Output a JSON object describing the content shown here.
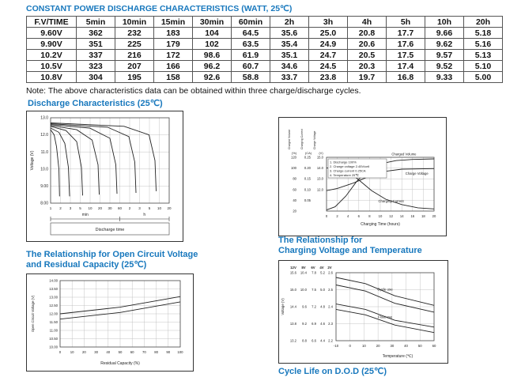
{
  "accent_color": "#1878bd",
  "table": {
    "title": "CONSTANT POWER DISCHARGE CHARACTERISTICS (WATT, 25℃)",
    "headers": [
      "F.V/TIME",
      "5min",
      "10min",
      "15min",
      "30min",
      "60min",
      "2h",
      "3h",
      "4h",
      "5h",
      "10h",
      "20h"
    ],
    "rows": [
      [
        "9.60V",
        "362",
        "232",
        "183",
        "104",
        "64.5",
        "35.6",
        "25.0",
        "20.8",
        "17.7",
        "9.66",
        "5.18"
      ],
      [
        "9.90V",
        "351",
        "225",
        "179",
        "102",
        "63.5",
        "35.4",
        "24.9",
        "20.6",
        "17.6",
        "9.62",
        "5.16"
      ],
      [
        "10.2V",
        "337",
        "216",
        "172",
        "98.6",
        "61.9",
        "35.1",
        "24.7",
        "20.5",
        "17.5",
        "9.57",
        "5.13"
      ],
      [
        "10.5V",
        "323",
        "207",
        "166",
        "96.2",
        "60.7",
        "34.6",
        "24.5",
        "20.3",
        "17.4",
        "9.52",
        "5.10"
      ],
      [
        "10.8V",
        "304",
        "195",
        "158",
        "92.6",
        "58.8",
        "33.7",
        "23.8",
        "19.7",
        "16.8",
        "9.33",
        "5.00"
      ]
    ],
    "note": "Note: The above characteristics data can be obtained within three charge/discharge cycles."
  },
  "sections": {
    "discharge": "Discharge Characteristics (25℃)",
    "ocv1": "The Relationship for Open Circuit Voltage",
    "ocv2": "and Residual Capacity (25℃)",
    "charging1": "The Relationship for",
    "charging2": "Charging Voltage and Temperature",
    "cycle": "Cycle Life on D.O.D (25℃)"
  },
  "chart_data": [
    {
      "id": "c1",
      "type": "line",
      "title": "Discharge Characteristics (25℃)",
      "ylabel": "Voltage (V)",
      "xlabel": "Discharge time",
      "x_unit_groups": [
        "min",
        "h"
      ],
      "y_ticks": [
        "13.0",
        "12.0",
        "11.0",
        "10.0",
        "9.00",
        "8.00"
      ],
      "x_ticks": [
        "1",
        "2",
        "3",
        "5",
        "10",
        "20",
        "30",
        "60",
        "2",
        "3",
        "5",
        "10",
        "20"
      ],
      "grid": true,
      "series": [
        {
          "name": "rate-1",
          "points": [
            [
              0,
              0.86
            ],
            [
              0.03,
              0.8
            ],
            [
              0.05,
              0.66
            ],
            [
              0.07,
              0.4
            ],
            [
              0.075,
              0.08
            ]
          ]
        },
        {
          "name": "rate-2",
          "points": [
            [
              0,
              0.88
            ],
            [
              0.07,
              0.83
            ],
            [
              0.12,
              0.7
            ],
            [
              0.15,
              0.42
            ],
            [
              0.16,
              0.08
            ]
          ]
        },
        {
          "name": "rate-3",
          "points": [
            [
              0,
              0.9
            ],
            [
              0.13,
              0.85
            ],
            [
              0.22,
              0.72
            ],
            [
              0.26,
              0.42
            ],
            [
              0.27,
              0.09
            ]
          ]
        },
        {
          "name": "rate-4",
          "points": [
            [
              0,
              0.91
            ],
            [
              0.22,
              0.86
            ],
            [
              0.35,
              0.74
            ],
            [
              0.4,
              0.45
            ],
            [
              0.41,
              0.1
            ]
          ]
        },
        {
          "name": "rate-5",
          "points": [
            [
              0,
              0.92
            ],
            [
              0.33,
              0.88
            ],
            [
              0.5,
              0.76
            ],
            [
              0.55,
              0.45
            ],
            [
              0.56,
              0.11
            ]
          ]
        },
        {
          "name": "rate-6",
          "points": [
            [
              0,
              0.93
            ],
            [
              0.48,
              0.89
            ],
            [
              0.66,
              0.78
            ],
            [
              0.71,
              0.48
            ],
            [
              0.72,
              0.12
            ]
          ]
        },
        {
          "name": "rate-7",
          "points": [
            [
              0,
              0.94
            ],
            [
              0.62,
              0.9
            ],
            [
              0.83,
              0.8
            ],
            [
              0.88,
              0.5
            ],
            [
              0.89,
              0.14
            ]
          ]
        }
      ]
    },
    {
      "id": "c2",
      "type": "line",
      "legend": [
        "1. Discharge 100%",
        "2. Charge voltage 2.45V/cell",
        "3. Charge current 0.25CA",
        "4. Temperature 25℃"
      ],
      "y_axes": [
        {
          "name": "Charged Volume",
          "unit": "(%)",
          "ticks": [
            "120",
            "100",
            "80",
            "60",
            "40",
            "20"
          ]
        },
        {
          "name": "Charging Current",
          "unit": "(CA)",
          "ticks": [
            "0.25",
            "0.20",
            "0.15",
            "0.10",
            "0.05",
            ""
          ]
        },
        {
          "name": "Charge Voltage",
          "unit": "(V)",
          "ticks": [
            "15.0",
            "14.0",
            "13.0",
            "12.0",
            "",
            ""
          ]
        }
      ],
      "x_ticks": [
        "0",
        "2",
        "4",
        "6",
        "8",
        "10",
        "12",
        "14",
        "16",
        "18",
        "20"
      ],
      "xlabel": "Charging Time (hours)",
      "grid": true,
      "series": [
        {
          "name": "charged-volume",
          "points": [
            [
              0,
              0.02
            ],
            [
              0.08,
              0.08
            ],
            [
              0.18,
              0.28
            ],
            [
              0.28,
              0.55
            ],
            [
              0.38,
              0.75
            ],
            [
              0.5,
              0.88
            ],
            [
              0.65,
              0.94
            ],
            [
              0.8,
              0.96
            ],
            [
              1,
              0.97
            ]
          ]
        },
        {
          "name": "charge-voltage",
          "points": [
            [
              0,
              0.38
            ],
            [
              0.1,
              0.42
            ],
            [
              0.25,
              0.52
            ],
            [
              0.4,
              0.65
            ],
            [
              0.55,
              0.74
            ],
            [
              0.7,
              0.78
            ],
            [
              1,
              0.79
            ]
          ]
        },
        {
          "name": "charging-current",
          "points": [
            [
              0,
              0.8
            ],
            [
              0.12,
              0.8
            ],
            [
              0.2,
              0.74
            ],
            [
              0.3,
              0.58
            ],
            [
              0.42,
              0.38
            ],
            [
              0.55,
              0.22
            ],
            [
              0.7,
              0.12
            ],
            [
              0.85,
              0.06
            ],
            [
              1,
              0.04
            ]
          ]
        }
      ],
      "annotations": [
        [
          "Charged Volume",
          0.72,
          1.04
        ],
        [
          "Charge Voltage",
          0.84,
          0.68
        ],
        [
          "Charging Current",
          0.6,
          0.16
        ]
      ]
    },
    {
      "id": "c3",
      "type": "line",
      "title": "The Relationship for Open Circuit Voltage and Residual Capacity (25℃)",
      "ylabel": "Open Circuit Voltage (V)",
      "xlabel": "Residual Capacity (%)",
      "y_ticks": [
        "14.00",
        "13.50",
        "13.00",
        "12.50",
        "12.00",
        "11.50",
        "11.00",
        "10.50",
        "10.00"
      ],
      "x_ticks": [
        "0",
        "10",
        "20",
        "30",
        "40",
        "50",
        "60",
        "70",
        "80",
        "90",
        "100"
      ],
      "grid": true,
      "series": [
        {
          "name": "ocv-upper",
          "points": [
            [
              0,
              0.5
            ],
            [
              0.5,
              0.6
            ],
            [
              1,
              0.76
            ]
          ]
        },
        {
          "name": "ocv-lower",
          "points": [
            [
              0,
              0.42
            ],
            [
              0.5,
              0.52
            ],
            [
              1,
              0.68
            ]
          ]
        }
      ]
    },
    {
      "id": "c4",
      "type": "line",
      "title": "The Relationship for Charging Voltage and Temperature",
      "ylabel": "Voltage (V)",
      "xlabel": "Temperature (℃)",
      "col_headers": [
        "12V",
        "8V",
        "6V",
        "4V",
        "2V"
      ],
      "y_tick_rows": [
        [
          "15.6",
          "10.4",
          "7.8",
          "5.2",
          "2.6"
        ],
        [
          "15.0",
          "10.0",
          "7.5",
          "5.0",
          "2.5"
        ],
        [
          "14.4",
          "9.6",
          "7.2",
          "4.8",
          "2.4"
        ],
        [
          "13.8",
          "9.2",
          "6.9",
          "4.6",
          "2.3"
        ],
        [
          "13.2",
          "8.8",
          "6.6",
          "4.4",
          "2.2"
        ]
      ],
      "x_ticks": [
        "-10",
        "0",
        "10",
        "20",
        "30",
        "40",
        "50",
        "60"
      ],
      "grid": true,
      "annotations": [
        [
          "Cycle use",
          0.5,
          0.74
        ],
        [
          "Float use",
          0.5,
          0.33
        ]
      ],
      "series": [
        {
          "name": "cycle-upper",
          "points": [
            [
              0,
              0.93
            ],
            [
              0.3,
              0.84
            ],
            [
              0.6,
              0.66
            ],
            [
              1,
              0.52
            ]
          ]
        },
        {
          "name": "cycle-lower",
          "points": [
            [
              0,
              0.82
            ],
            [
              0.3,
              0.73
            ],
            [
              0.6,
              0.55
            ],
            [
              1,
              0.42
            ]
          ]
        },
        {
          "name": "float-upper",
          "points": [
            [
              0,
              0.54
            ],
            [
              0.3,
              0.46
            ],
            [
              0.6,
              0.3
            ],
            [
              1,
              0.2
            ]
          ]
        },
        {
          "name": "float-lower",
          "points": [
            [
              0,
              0.46
            ],
            [
              0.3,
              0.38
            ],
            [
              0.6,
              0.23
            ],
            [
              1,
              0.12
            ]
          ]
        }
      ]
    }
  ]
}
